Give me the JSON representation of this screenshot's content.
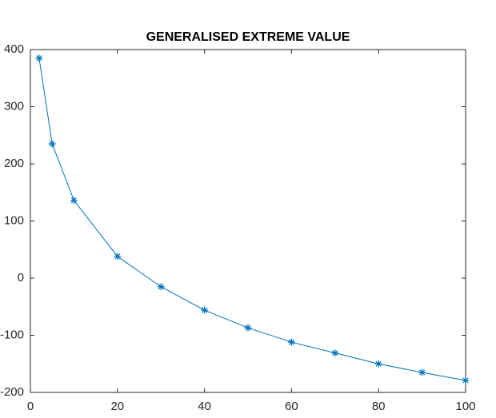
{
  "chart_data": {
    "type": "line",
    "title": "GENERALISED EXTREME VALUE",
    "x": [
      2,
      5,
      10,
      20,
      30,
      40,
      50,
      60,
      70,
      80,
      90,
      100
    ],
    "series": [
      {
        "color": "#0072bd",
        "marker": "*",
        "values": [
          385,
          235,
          136,
          38,
          -15,
          -56,
          -87,
          -112,
          -131,
          -150,
          -165,
          -179
        ]
      }
    ],
    "xlim": [
      0,
      100
    ],
    "xticks": [
      0,
      20,
      40,
      60,
      80,
      100
    ],
    "ylim": [
      -200,
      400
    ],
    "yticks": [
      -200,
      -100,
      0,
      100,
      200,
      300,
      400
    ]
  }
}
